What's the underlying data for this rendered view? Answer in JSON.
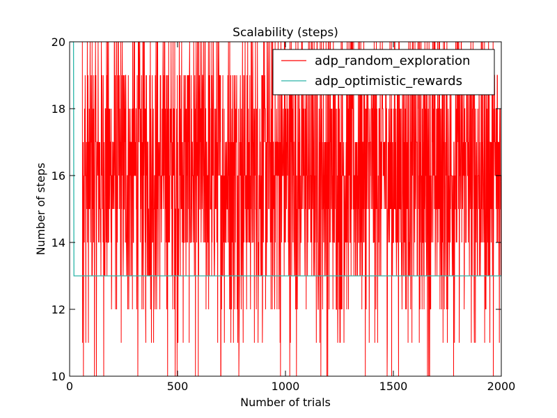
{
  "chart_data": {
    "type": "line",
    "title": "Scalability (steps)",
    "xlabel": "Number of trials",
    "ylabel": "Number of steps",
    "xlim": [
      0,
      2000
    ],
    "ylim": [
      10,
      20
    ],
    "xticks": [
      0,
      500,
      1000,
      1500,
      2000
    ],
    "yticks": [
      10,
      12,
      14,
      16,
      18,
      20
    ],
    "grid": false,
    "legend_position": "top-right",
    "series": [
      {
        "name": "adp_random_exploration",
        "color": "#ff0000",
        "x_start": 1,
        "x_end": 2000,
        "value_range": [
          10,
          20
        ],
        "note_values": "noisy integer step counts per trial, oscillating mostly between 12 and 20 with occasional dips to 10-11"
      },
      {
        "name": "adp_optimistic_rewards",
        "color": "#2ab5a8",
        "x": [
          0,
          10,
          18,
          20,
          2000
        ],
        "values": [
          20,
          20,
          20,
          13,
          13
        ]
      }
    ]
  }
}
